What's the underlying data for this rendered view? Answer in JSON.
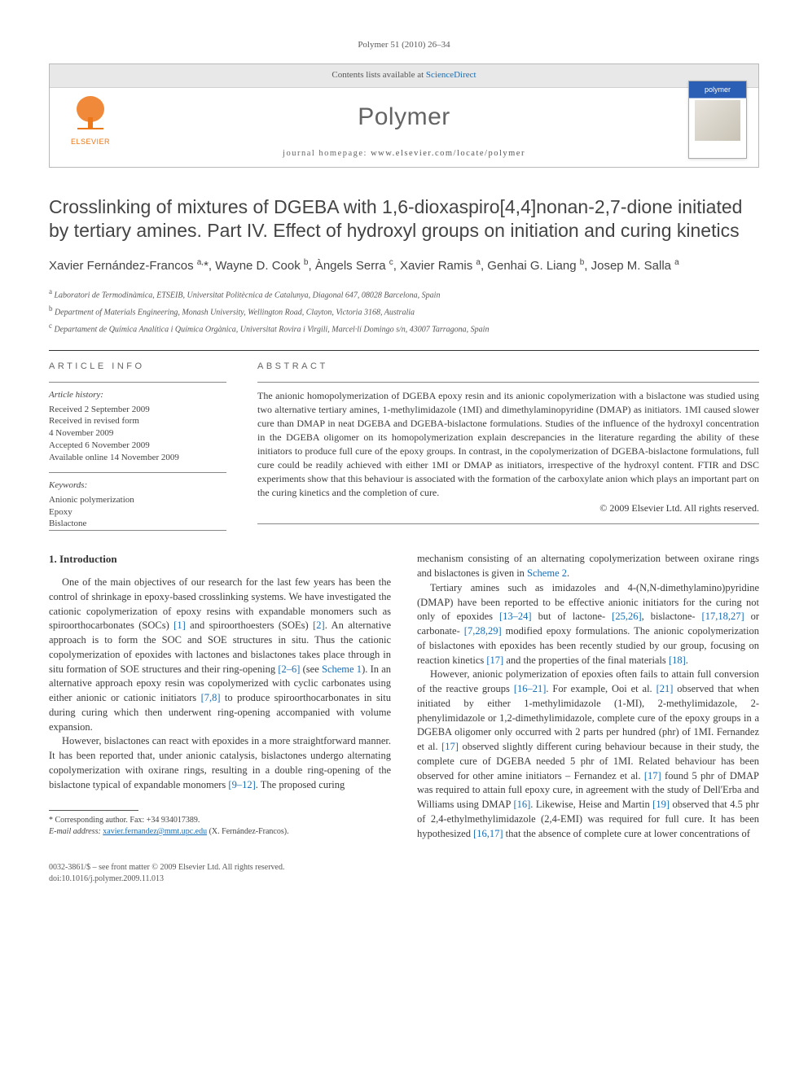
{
  "journal_ref": "Polymer 51 (2010) 26–34",
  "header": {
    "contents_available": "Contents lists available at ",
    "sciencedirect": "ScienceDirect",
    "journal_name": "Polymer",
    "homepage_label": "journal homepage: ",
    "homepage_url": "www.elsevier.com/locate/polymer",
    "elsevier": "ELSEVIER",
    "cover_title": "polymer"
  },
  "title": "Crosslinking of mixtures of DGEBA with 1,6-dioxaspiro[4,4]nonan-2,7-dione initiated by tertiary amines. Part IV. Effect of hydroxyl groups on initiation and curing kinetics",
  "authors_html": "Xavier Fernández-Francos <sup>a,</sup>*, Wayne D. Cook <sup>b</sup>, Àngels Serra <sup>c</sup>, Xavier Ramis <sup>a</sup>, Genhai G. Liang <sup>b</sup>, Josep M. Salla <sup>a</sup>",
  "affiliations": [
    {
      "sup": "a",
      "text": "Laboratori de Termodinàmica, ETSEIB, Universitat Politècnica de Catalunya, Diagonal 647, 08028 Barcelona, Spain"
    },
    {
      "sup": "b",
      "text": "Department of Materials Engineering, Monash University, Wellington Road, Clayton, Victoria 3168, Australia"
    },
    {
      "sup": "c",
      "text": "Departament de Química Analítica i Química Orgànica, Universitat Rovira i Virgili, Marcel·lí Domingo s/n, 43007 Tarragona, Spain"
    }
  ],
  "article_info_label": "ARTICLE INFO",
  "abstract_label": "ABSTRACT",
  "history_head": "Article history:",
  "history": [
    "Received 2 September 2009",
    "Received in revised form",
    "4 November 2009",
    "Accepted 6 November 2009",
    "Available online 14 November 2009"
  ],
  "keywords_head": "Keywords:",
  "keywords": [
    "Anionic polymerization",
    "Epoxy",
    "Bislactone"
  ],
  "abstract": "The anionic homopolymerization of DGEBA epoxy resin and its anionic copolymerization with a bislactone was studied using two alternative tertiary amines, 1-methylimidazole (1MI) and dimethylaminopyridine (DMAP) as initiators. 1MI caused slower cure than DMAP in neat DGEBA and DGEBA-bislactone formulations. Studies of the influence of the hydroxyl concentration in the DGEBA oligomer on its homopolymerization explain descrepancies in the literature regarding the ability of these initiators to produce full cure of the epoxy groups. In contrast, in the copolymerization of DGEBA-bislactone formulations, full cure could be readily achieved with either 1MI or DMAP as initiators, irrespective of the hydroxyl content. FTIR and DSC experiments show that this behaviour is associated with the formation of the carboxylate anion which plays an important part on the curing kinetics and the completion of cure.",
  "abstract_copyright": "© 2009 Elsevier Ltd. All rights reserved.",
  "intro_head": "1. Introduction",
  "col1_p1": "One of the main objectives of our research for the last few years has been the control of shrinkage in epoxy-based crosslinking systems. We have investigated the cationic copolymerization of epoxy resins with expandable monomers such as spiroorthocarbonates (SOCs) [1] and spiroorthoesters (SOEs) [2]. An alternative approach is to form the SOC and SOE structures in situ. Thus the cationic copolymerization of epoxides with lactones and bislactones takes place through in situ formation of SOE structures and their ring-opening [2–6] (see Scheme 1). In an alternative approach epoxy resin was copolymerized with cyclic carbonates using either anionic or cationic initiators [7,8] to produce spiroorthocarbonates in situ during curing which then underwent ring-opening accompanied with volume expansion.",
  "col1_p2": "However, bislactones can react with epoxides in a more straightforward manner. It has been reported that, under anionic catalysis, bislactones undergo alternating copolymerization with oxirane rings, resulting in a double ring-opening of the bislactone typical of expandable monomers [9–12]. The proposed curing",
  "col2_p1": "mechanism consisting of an alternating copolymerization between oxirane rings and bislactones is given in Scheme 2.",
  "col2_p2": "Tertiary amines such as imidazoles and 4-(N,N-dimethylamino)pyridine (DMAP) have been reported to be effective anionic initiators for the curing not only of epoxides [13–24] but of lactone- [25,26], bislactone- [17,18,27] or carbonate- [7,28,29] modified epoxy formulations. The anionic copolymerization of bislactones with epoxides has been recently studied by our group, focusing on reaction kinetics [17] and the properties of the final materials [18].",
  "col2_p3": "However, anionic polymerization of epoxies often fails to attain full conversion of the reactive groups [16–21]. For example, Ooi et al. [21] observed that when initiated by either 1-methylimidazole (1-MI), 2-methylimidazole, 2-phenylimidazole or 1,2-dimethylimidazole, complete cure of the epoxy groups in a DGEBA oligomer only occurred with 2 parts per hundred (phr) of 1MI. Fernandez et al. [17] observed slightly different curing behaviour because in their study, the complete cure of DGEBA needed 5 phr of 1MI. Related behaviour has been observed for other amine initiators – Fernandez et al. [17] found 5 phr of DMAP was required to attain full epoxy cure, in agreement with the study of Dell'Erba and Williams using DMAP [16]. Likewise, Heise and Martin [19] observed that 4.5 phr of 2,4-ethylmethylimidazole (2,4-EMI) was required for full cure. It has been hypothesized [16,17] that the absence of complete cure at lower concentrations of",
  "footnote_corr": "* Corresponding author. Fax: +34 934017389.",
  "footnote_email_label": "E-mail address: ",
  "footnote_email": "xavier.fernandez@mmt.upc.edu",
  "footnote_email_who": " (X. Fernández-Francos).",
  "footer_issn": "0032-3861/$ – see front matter © 2009 Elsevier Ltd. All rights reserved.",
  "footer_doi": "doi:10.1016/j.polymer.2009.11.013"
}
